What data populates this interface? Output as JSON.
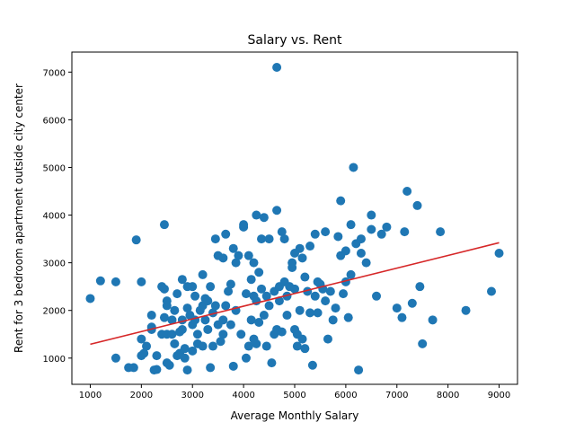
{
  "chart_data": {
    "type": "scatter",
    "title": "Salary vs. Rent",
    "xlabel": "Average Monthly Salary",
    "ylabel": "Rent for 3 bedroom apartment outside city center",
    "xlim": [
      640,
      9360
    ],
    "ylim": [
      450,
      7420
    ],
    "xticks": [
      1000,
      2000,
      3000,
      4000,
      5000,
      6000,
      7000,
      8000,
      9000
    ],
    "yticks": [
      1000,
      2000,
      3000,
      4000,
      5000,
      6000,
      7000
    ],
    "grid": false,
    "legend": "none",
    "colors": {
      "points": "#1f77b4",
      "trend": "#d62728",
      "frame": "#000000"
    },
    "trend_line": {
      "x": [
        1000,
        9000
      ],
      "y": [
        1290,
        3420
      ]
    },
    "series": [
      {
        "values": [
          [
            1000,
            2250
          ],
          [
            1200,
            2620
          ],
          [
            1500,
            2600
          ],
          [
            1500,
            1000
          ],
          [
            1750,
            800
          ],
          [
            1850,
            800
          ],
          [
            1900,
            3480
          ],
          [
            2000,
            2600
          ],
          [
            2000,
            1400
          ],
          [
            2000,
            1050
          ],
          [
            2050,
            1100
          ],
          [
            2100,
            1250
          ],
          [
            2200,
            1900
          ],
          [
            2200,
            1650
          ],
          [
            2200,
            1600
          ],
          [
            2250,
            750
          ],
          [
            2300,
            760
          ],
          [
            2300,
            1050
          ],
          [
            2400,
            2500
          ],
          [
            2400,
            1500
          ],
          [
            2450,
            3800
          ],
          [
            2450,
            2450
          ],
          [
            2450,
            1850
          ],
          [
            2500,
            2200
          ],
          [
            2500,
            2100
          ],
          [
            2500,
            1500
          ],
          [
            2500,
            900
          ],
          [
            2550,
            850
          ],
          [
            2600,
            1800
          ],
          [
            2600,
            1500
          ],
          [
            2650,
            1300
          ],
          [
            2650,
            2000
          ],
          [
            2700,
            2350
          ],
          [
            2700,
            1050
          ],
          [
            2750,
            1100
          ],
          [
            2750,
            1550
          ],
          [
            2800,
            2650
          ],
          [
            2800,
            1800
          ],
          [
            2800,
            1600
          ],
          [
            2850,
            1200
          ],
          [
            2850,
            1000
          ],
          [
            2900,
            2500
          ],
          [
            2900,
            2050
          ],
          [
            2900,
            750
          ],
          [
            2950,
            1900
          ],
          [
            3000,
            2500
          ],
          [
            3000,
            1700
          ],
          [
            3000,
            1150
          ],
          [
            3050,
            2300
          ],
          [
            3050,
            1800
          ],
          [
            3100,
            1500
          ],
          [
            3100,
            1300
          ],
          [
            3150,
            2000
          ],
          [
            3200,
            2750
          ],
          [
            3200,
            2100
          ],
          [
            3200,
            1250
          ],
          [
            3250,
            2250
          ],
          [
            3250,
            1800
          ],
          [
            3300,
            2200
          ],
          [
            3300,
            1600
          ],
          [
            3350,
            2500
          ],
          [
            3350,
            800
          ],
          [
            3400,
            1950
          ],
          [
            3400,
            1250
          ],
          [
            3450,
            3500
          ],
          [
            3450,
            2100
          ],
          [
            3500,
            3150
          ],
          [
            3500,
            1700
          ],
          [
            3550,
            1350
          ],
          [
            3600,
            3100
          ],
          [
            3600,
            1800
          ],
          [
            3600,
            1500
          ],
          [
            3650,
            3600
          ],
          [
            3650,
            2100
          ],
          [
            3700,
            2400
          ],
          [
            3750,
            2550
          ],
          [
            3750,
            1700
          ],
          [
            3800,
            830
          ],
          [
            3800,
            3300
          ],
          [
            3850,
            3000
          ],
          [
            3850,
            2000
          ],
          [
            3900,
            3150
          ],
          [
            3950,
            1500
          ],
          [
            4000,
            3750
          ],
          [
            4000,
            3800
          ],
          [
            4050,
            2350
          ],
          [
            4050,
            1000
          ],
          [
            4100,
            3150
          ],
          [
            4100,
            1250
          ],
          [
            4150,
            2650
          ],
          [
            4150,
            1800
          ],
          [
            4200,
            3000
          ],
          [
            4200,
            2300
          ],
          [
            4200,
            1400
          ],
          [
            4250,
            4000
          ],
          [
            4250,
            2200
          ],
          [
            4250,
            1300
          ],
          [
            4300,
            2800
          ],
          [
            4300,
            1750
          ],
          [
            4350,
            3500
          ],
          [
            4350,
            2450
          ],
          [
            4400,
            3950
          ],
          [
            4400,
            1900
          ],
          [
            4450,
            2300
          ],
          [
            4450,
            1250
          ],
          [
            4500,
            3500
          ],
          [
            4500,
            2100
          ],
          [
            4550,
            900
          ],
          [
            4600,
            2400
          ],
          [
            4600,
            1500
          ],
          [
            4650,
            4100
          ],
          [
            4650,
            7100
          ],
          [
            4650,
            1600
          ],
          [
            4700,
            2500
          ],
          [
            4700,
            2200
          ],
          [
            4750,
            3650
          ],
          [
            4750,
            1550
          ],
          [
            4800,
            3500
          ],
          [
            4800,
            2600
          ],
          [
            4850,
            2300
          ],
          [
            4850,
            1900
          ],
          [
            4900,
            2500
          ],
          [
            4950,
            2900
          ],
          [
            4950,
            3000
          ],
          [
            5000,
            3200
          ],
          [
            5000,
            2450
          ],
          [
            5000,
            1600
          ],
          [
            5050,
            1250
          ],
          [
            5050,
            1500
          ],
          [
            5100,
            3300
          ],
          [
            5100,
            2000
          ],
          [
            5150,
            3100
          ],
          [
            5150,
            1400
          ],
          [
            5200,
            2700
          ],
          [
            5200,
            1200
          ],
          [
            5250,
            2400
          ],
          [
            5300,
            3350
          ],
          [
            5300,
            1950
          ],
          [
            5350,
            850
          ],
          [
            5400,
            3600
          ],
          [
            5400,
            2300
          ],
          [
            5450,
            2600
          ],
          [
            5450,
            1950
          ],
          [
            5500,
            2550
          ],
          [
            5550,
            2450
          ],
          [
            5600,
            3650
          ],
          [
            5600,
            2200
          ],
          [
            5650,
            1400
          ],
          [
            5700,
            2400
          ],
          [
            5750,
            1800
          ],
          [
            5800,
            2050
          ],
          [
            5850,
            3550
          ],
          [
            5900,
            4300
          ],
          [
            5900,
            3150
          ],
          [
            5950,
            2350
          ],
          [
            6000,
            2600
          ],
          [
            6000,
            3250
          ],
          [
            6050,
            1850
          ],
          [
            6100,
            3800
          ],
          [
            6100,
            2750
          ],
          [
            6150,
            5000
          ],
          [
            6200,
            3400
          ],
          [
            6250,
            750
          ],
          [
            6300,
            3500
          ],
          [
            6300,
            3200
          ],
          [
            6400,
            3000
          ],
          [
            6500,
            4000
          ],
          [
            6500,
            3700
          ],
          [
            6600,
            2300
          ],
          [
            6700,
            3600
          ],
          [
            6800,
            3750
          ],
          [
            7000,
            2050
          ],
          [
            7100,
            1850
          ],
          [
            7150,
            3650
          ],
          [
            7200,
            4500
          ],
          [
            7300,
            2150
          ],
          [
            7400,
            4200
          ],
          [
            7450,
            2500
          ],
          [
            7500,
            1300
          ],
          [
            7700,
            1800
          ],
          [
            7850,
            3650
          ],
          [
            8350,
            2000
          ],
          [
            8850,
            2400
          ],
          [
            9000,
            3200
          ]
        ]
      }
    ]
  }
}
